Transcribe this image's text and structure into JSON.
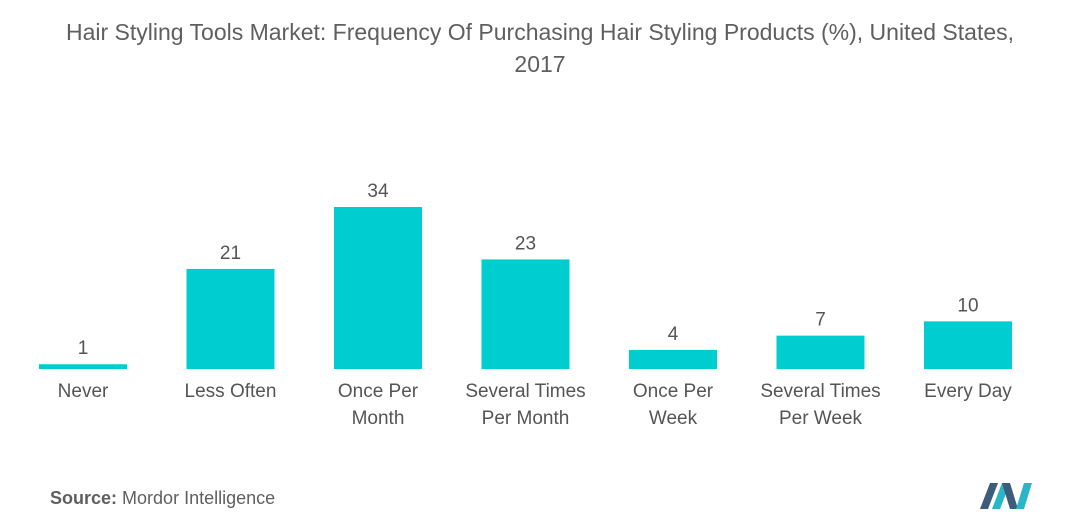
{
  "title_line1": "Hair Styling Tools Market: Frequency Of Purchasing Hair Styling Products (%), United States,",
  "title_line2": "2017",
  "source_label": "Source:",
  "source_text": "Mordor Intelligence",
  "colors": {
    "bar": "#00CDD0",
    "text": "#555555",
    "logo_dark": "#3d5b7a",
    "logo_teal": "#2bb5c8"
  },
  "chart_data": {
    "type": "bar",
    "title": "Hair Styling Tools Market: Frequency Of Purchasing Hair Styling Products (%), United States, 2017",
    "categories": [
      [
        "Never"
      ],
      [
        "Less Often"
      ],
      [
        "Once Per",
        "Month"
      ],
      [
        "Several Times",
        "Per Month"
      ],
      [
        "Once Per",
        "Week"
      ],
      [
        "Several Times",
        "Per Week"
      ],
      [
        "Every Day"
      ]
    ],
    "values": [
      1,
      21,
      34,
      23,
      4,
      7,
      10
    ],
    "xlabel": "",
    "ylabel": "",
    "ylim": [
      0,
      34
    ],
    "grid": false,
    "legend": "none"
  }
}
